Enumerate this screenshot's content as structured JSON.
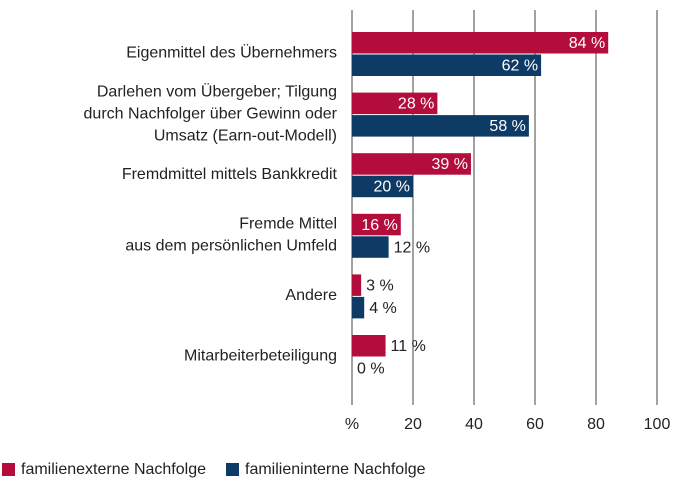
{
  "chart_data": {
    "type": "hbar",
    "categories": [
      [
        "Eigenmittel des Übernehmers"
      ],
      [
        "Darlehen vom Übergeber; Tilgung",
        "durch Nachfolger über Gewinn oder",
        "Umsatz (Earn-out-Modell)"
      ],
      [
        "Fremdmittel mittels Bankkredit"
      ],
      [
        "Fremde Mittel",
        "aus dem persönlichen Umfeld"
      ],
      [
        "Andere"
      ],
      [
        "Mitarbeiterbeteiligung"
      ]
    ],
    "series": [
      {
        "name": "familienexterne Nachfolge",
        "color": "#b30d3c",
        "values": [
          84,
          28,
          39,
          16,
          3,
          11
        ],
        "value_labels": [
          "84 %",
          "28 %",
          "39 %",
          "16 %",
          "3 %",
          "11 %"
        ]
      },
      {
        "name": "familieninterne Nachfolge",
        "color": "#0e3a66",
        "values": [
          62,
          58,
          20,
          12,
          4,
          0
        ],
        "value_labels": [
          "62 %",
          "58 %",
          "20 %",
          "12 %",
          "4 %",
          "0 %"
        ]
      }
    ],
    "xlim": [
      0,
      100
    ],
    "xticks": [
      {
        "value": 0,
        "label": "%"
      },
      20,
      40,
      60,
      80,
      100
    ],
    "grid": true
  }
}
